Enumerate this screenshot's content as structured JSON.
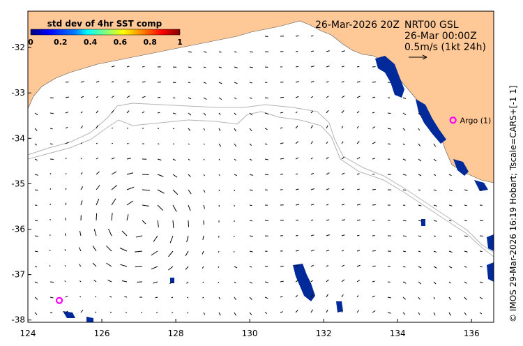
{
  "header": {
    "timestamp": "26-Mar-2026 20Z",
    "product": "NRT00 GSL",
    "product_time": "26-Mar 00:00Z",
    "vector_scale": "0.5m/s (1kt 24h)"
  },
  "colorbar": {
    "title": "std dev of 4hr SST comp",
    "ticks": [
      "0",
      "0.2",
      "0.4",
      "0.6",
      "0.8",
      "1"
    ],
    "colors": [
      "#00007f",
      "#0000ff",
      "#007fff",
      "#00ffff",
      "#7fff7f",
      "#ffff00",
      "#ff7f00",
      "#ff0000",
      "#7f0000"
    ]
  },
  "axes": {
    "x_ticks": [
      "124",
      "126",
      "128",
      "130",
      "132",
      "134",
      "136"
    ],
    "y_ticks": [
      "-32",
      "-33",
      "-34",
      "-35",
      "-36",
      "-37",
      "-38"
    ],
    "xlim": [
      124,
      136.6
    ],
    "ylim": [
      -38.05,
      -31.2
    ]
  },
  "markers": {
    "argo_label": "Argo (1)",
    "argo_lon": 135.5,
    "argo_lat": -33.6,
    "float_lon": 124.85,
    "float_lat": -37.57,
    "color": "#ff00ff"
  },
  "credit": "© IMOS 29-Mar-2026 16:19 Hobart; Tscale=CARS+[-1 1]",
  "colors": {
    "land": "#ffc896",
    "data_high": "#002a9a",
    "contour": "#b4b4b4",
    "arrow": "#000000"
  }
}
